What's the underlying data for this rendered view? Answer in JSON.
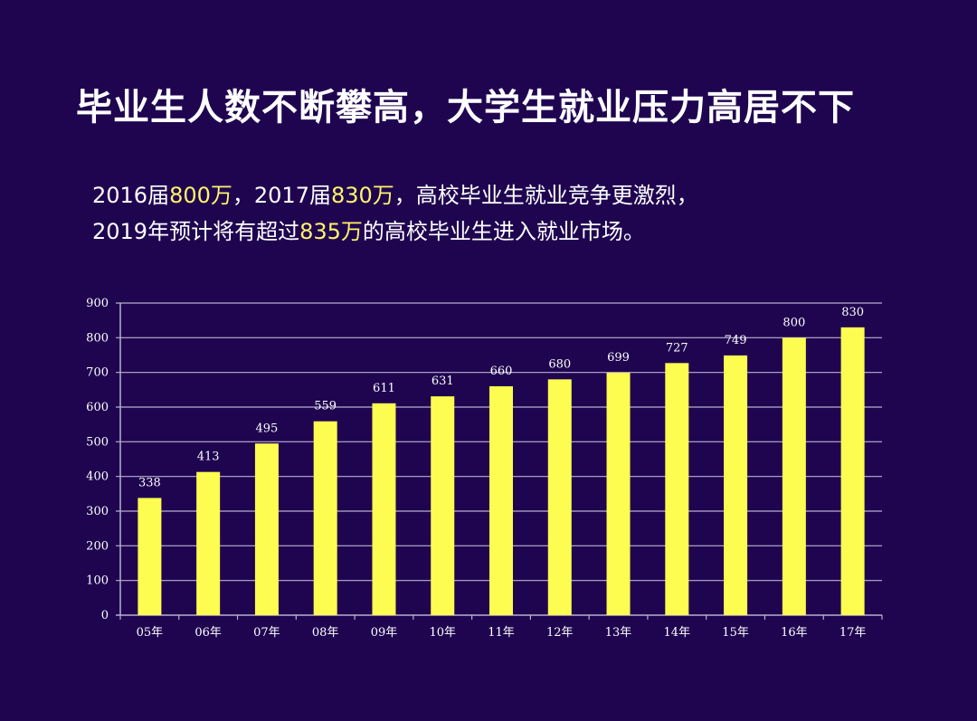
{
  "page": {
    "title": "毕业生人数不断攀高，大学生就业压力高居不下",
    "line1": {
      "a": "2016届",
      "b": "800万",
      "c": "，2017届",
      "d": "830万",
      "e": "，高校毕业生就业竞争更激烈，"
    },
    "line2": {
      "a": "2019年预计将有超过",
      "b": "835万",
      "c": "的高校毕业生进入就业市场。"
    }
  },
  "colors": {
    "background": "#1f0550",
    "bar": "#fdfc50",
    "highlight": "#fff46a",
    "grid": "#b9afd0"
  },
  "chart_data": {
    "type": "bar",
    "title": "",
    "xlabel": "",
    "ylabel": "",
    "categories": [
      "05年",
      "06年",
      "07年",
      "08年",
      "09年",
      "10年",
      "11年",
      "12年",
      "13年",
      "14年",
      "15年",
      "16年",
      "17年"
    ],
    "values": [
      338,
      413,
      495,
      559,
      611,
      631,
      660,
      680,
      699,
      727,
      749,
      800,
      830
    ],
    "ylim": [
      0,
      900
    ],
    "yticks": [
      0,
      100,
      200,
      300,
      400,
      500,
      600,
      700,
      800,
      900
    ],
    "grid": true,
    "data_labels": true
  }
}
